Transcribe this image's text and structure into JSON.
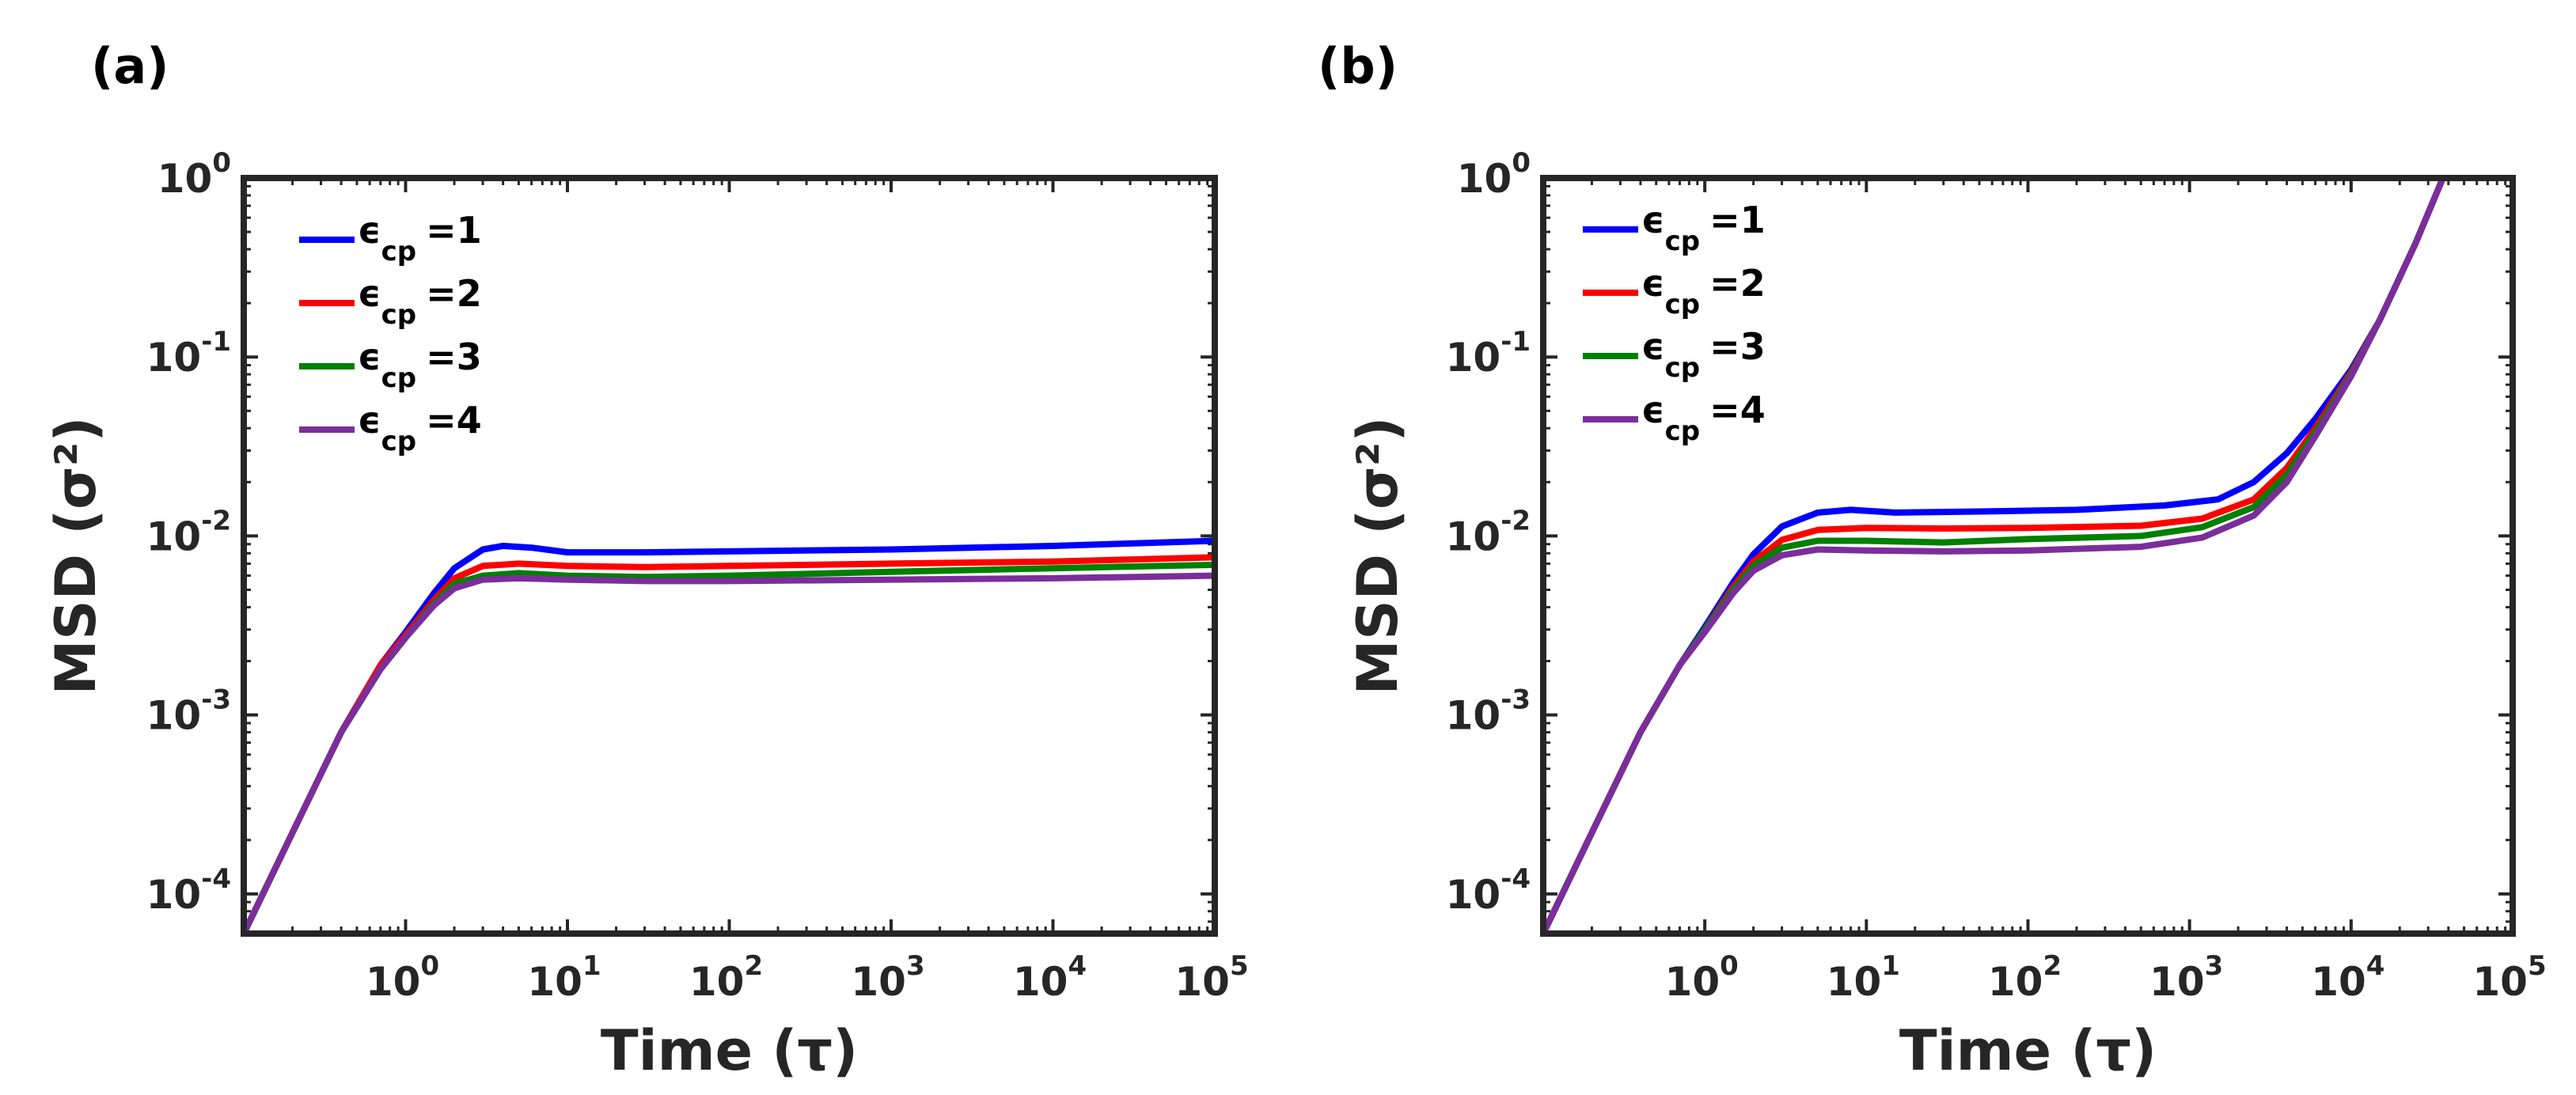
{
  "figure": {
    "panels": [
      {
        "id": "a",
        "label": "(a)"
      },
      {
        "id": "b",
        "label": "(b)"
      }
    ]
  },
  "chart_data": [
    {
      "type": "line",
      "panel_label": "(a)",
      "xscale": "log",
      "yscale": "log",
      "xlabel": "Time (τ)",
      "ylabel": "MSD (σ²)",
      "xlim": [
        0.1,
        100000
      ],
      "ylim": [
        6e-05,
        1
      ],
      "xticks": [
        {
          "value": 1,
          "base": "10",
          "exp": "0"
        },
        {
          "value": 10,
          "base": "10",
          "exp": "1"
        },
        {
          "value": 100,
          "base": "10",
          "exp": "2"
        },
        {
          "value": 1000,
          "base": "10",
          "exp": "3"
        },
        {
          "value": 10000,
          "base": "10",
          "exp": "4"
        },
        {
          "value": 100000,
          "base": "10",
          "exp": "5"
        }
      ],
      "yticks": [
        {
          "value": 0.0001,
          "base": "10",
          "exp": "-4"
        },
        {
          "value": 0.001,
          "base": "10",
          "exp": "-3"
        },
        {
          "value": 0.01,
          "base": "10",
          "exp": "-2"
        },
        {
          "value": 0.1,
          "base": "10",
          "exp": "-1"
        },
        {
          "value": 1,
          "base": "10",
          "exp": "0"
        }
      ],
      "legend_position": "top-left",
      "series": [
        {
          "name": "εcp =1",
          "symbol": "ϵ",
          "sub": "cp",
          "suffix": "=1",
          "color": "#0000ff",
          "points": [
            [
              0.1,
              6e-05
            ],
            [
              0.2,
              0.00022
            ],
            [
              0.4,
              0.0008
            ],
            [
              0.7,
              0.0019
            ],
            [
              1,
              0.0029
            ],
            [
              1.5,
              0.0048
            ],
            [
              2,
              0.0066
            ],
            [
              3,
              0.0084
            ],
            [
              4,
              0.0088
            ],
            [
              6,
              0.0086
            ],
            [
              10,
              0.0081
            ],
            [
              30,
              0.0081
            ],
            [
              100,
              0.0082
            ],
            [
              1000,
              0.0084
            ],
            [
              10000,
              0.0088
            ],
            [
              100000,
              0.0094
            ]
          ]
        },
        {
          "name": "εcp =2",
          "symbol": "ϵ",
          "sub": "cp",
          "suffix": "=2",
          "color": "#ff0000",
          "points": [
            [
              0.1,
              6e-05
            ],
            [
              0.2,
              0.00022
            ],
            [
              0.4,
              0.0008
            ],
            [
              0.7,
              0.0019
            ],
            [
              1,
              0.0028
            ],
            [
              1.5,
              0.0044
            ],
            [
              2,
              0.0058
            ],
            [
              3,
              0.0068
            ],
            [
              5,
              0.007
            ],
            [
              10,
              0.0068
            ],
            [
              30,
              0.0067
            ],
            [
              100,
              0.0068
            ],
            [
              1000,
              0.007
            ],
            [
              10000,
              0.0072
            ],
            [
              100000,
              0.0076
            ]
          ]
        },
        {
          "name": "εcp =3",
          "symbol": "ϵ",
          "sub": "cp",
          "suffix": "=3",
          "color": "#008000",
          "points": [
            [
              0.1,
              6e-05
            ],
            [
              0.2,
              0.00022
            ],
            [
              0.4,
              0.0008
            ],
            [
              0.7,
              0.0018
            ],
            [
              1,
              0.0027
            ],
            [
              1.5,
              0.0042
            ],
            [
              2,
              0.0054
            ],
            [
              3,
              0.006
            ],
            [
              5,
              0.0062
            ],
            [
              10,
              0.006
            ],
            [
              30,
              0.0059
            ],
            [
              100,
              0.006
            ],
            [
              1000,
              0.0063
            ],
            [
              10000,
              0.0066
            ],
            [
              100000,
              0.0069
            ]
          ]
        },
        {
          "name": "εcp =4",
          "symbol": "ϵ",
          "sub": "cp",
          "suffix": "=4",
          "color": "#7b2e9b",
          "points": [
            [
              0.1,
              6e-05
            ],
            [
              0.2,
              0.00022
            ],
            [
              0.4,
              0.0008
            ],
            [
              0.7,
              0.0018
            ],
            [
              1,
              0.0027
            ],
            [
              1.5,
              0.0041
            ],
            [
              2,
              0.0051
            ],
            [
              3,
              0.0057
            ],
            [
              5,
              0.0058
            ],
            [
              10,
              0.0057
            ],
            [
              30,
              0.0056
            ],
            [
              100,
              0.0056
            ],
            [
              1000,
              0.0057
            ],
            [
              10000,
              0.0058
            ],
            [
              100000,
              0.006
            ]
          ]
        }
      ]
    },
    {
      "type": "line",
      "panel_label": "(b)",
      "xscale": "log",
      "yscale": "log",
      "xlabel": "Time (τ)",
      "ylabel": "MSD (σ²)",
      "xlim": [
        0.1,
        100000
      ],
      "ylim": [
        6e-05,
        1
      ],
      "xticks": [
        {
          "value": 1,
          "base": "10",
          "exp": "0"
        },
        {
          "value": 10,
          "base": "10",
          "exp": "1"
        },
        {
          "value": 100,
          "base": "10",
          "exp": "2"
        },
        {
          "value": 1000,
          "base": "10",
          "exp": "3"
        },
        {
          "value": 10000,
          "base": "10",
          "exp": "4"
        },
        {
          "value": 100000,
          "base": "10",
          "exp": "5"
        }
      ],
      "yticks": [
        {
          "value": 0.0001,
          "base": "10",
          "exp": "-4"
        },
        {
          "value": 0.001,
          "base": "10",
          "exp": "-3"
        },
        {
          "value": 0.01,
          "base": "10",
          "exp": "-2"
        },
        {
          "value": 0.1,
          "base": "10",
          "exp": "-1"
        },
        {
          "value": 1,
          "base": "10",
          "exp": "0"
        }
      ],
      "legend_position": "top-left",
      "series": [
        {
          "name": "εcp =1",
          "symbol": "ϵ",
          "sub": "cp",
          "suffix": "=1",
          "color": "#0000ff",
          "points": [
            [
              0.1,
              6e-05
            ],
            [
              0.2,
              0.00022
            ],
            [
              0.4,
              0.0008
            ],
            [
              0.7,
              0.0019
            ],
            [
              1,
              0.0031
            ],
            [
              1.5,
              0.0055
            ],
            [
              2,
              0.0079
            ],
            [
              3,
              0.0113
            ],
            [
              5,
              0.0135
            ],
            [
              8,
              0.014
            ],
            [
              15,
              0.0135
            ],
            [
              50,
              0.0137
            ],
            [
              200,
              0.014
            ],
            [
              700,
              0.0148
            ],
            [
              1500,
              0.016
            ],
            [
              2500,
              0.02
            ],
            [
              4000,
              0.029
            ],
            [
              6000,
              0.045
            ],
            [
              10000,
              0.085
            ],
            [
              15000,
              0.16
            ],
            [
              25000,
              0.43
            ],
            [
              37000,
              1
            ]
          ]
        },
        {
          "name": "εcp =2",
          "symbol": "ϵ",
          "sub": "cp",
          "suffix": "=2",
          "color": "#ff0000",
          "points": [
            [
              0.1,
              6e-05
            ],
            [
              0.2,
              0.00022
            ],
            [
              0.4,
              0.0008
            ],
            [
              0.7,
              0.0019
            ],
            [
              1,
              0.003
            ],
            [
              1.5,
              0.0052
            ],
            [
              2,
              0.0072
            ],
            [
              3,
              0.0095
            ],
            [
              5,
              0.0108
            ],
            [
              10,
              0.0111
            ],
            [
              30,
              0.011
            ],
            [
              100,
              0.0111
            ],
            [
              500,
              0.0114
            ],
            [
              1200,
              0.0125
            ],
            [
              2500,
              0.016
            ],
            [
              4000,
              0.024
            ],
            [
              6000,
              0.04
            ],
            [
              10000,
              0.082
            ],
            [
              15000,
              0.16
            ],
            [
              25000,
              0.43
            ],
            [
              37000,
              1
            ]
          ]
        },
        {
          "name": "εcp =3",
          "symbol": "ϵ",
          "sub": "cp",
          "suffix": "=3",
          "color": "#008000",
          "points": [
            [
              0.1,
              6e-05
            ],
            [
              0.2,
              0.00022
            ],
            [
              0.4,
              0.0008
            ],
            [
              0.7,
              0.0019
            ],
            [
              1,
              0.003
            ],
            [
              1.5,
              0.005
            ],
            [
              2,
              0.0068
            ],
            [
              3,
              0.0086
            ],
            [
              5,
              0.0094
            ],
            [
              10,
              0.0094
            ],
            [
              30,
              0.0092
            ],
            [
              100,
              0.0096
            ],
            [
              500,
              0.01
            ],
            [
              1200,
              0.0112
            ],
            [
              2500,
              0.0145
            ],
            [
              4000,
              0.022
            ],
            [
              6000,
              0.038
            ],
            [
              10000,
              0.08
            ],
            [
              15000,
              0.16
            ],
            [
              25000,
              0.43
            ],
            [
              37000,
              1
            ]
          ]
        },
        {
          "name": "εcp =4",
          "symbol": "ϵ",
          "sub": "cp",
          "suffix": "=4",
          "color": "#7b2e9b",
          "points": [
            [
              0.1,
              6e-05
            ],
            [
              0.2,
              0.00022
            ],
            [
              0.4,
              0.0008
            ],
            [
              0.7,
              0.0019
            ],
            [
              1,
              0.0029
            ],
            [
              1.5,
              0.0048
            ],
            [
              2,
              0.0064
            ],
            [
              3,
              0.0078
            ],
            [
              5,
              0.0084
            ],
            [
              10,
              0.0083
            ],
            [
              30,
              0.0082
            ],
            [
              100,
              0.0083
            ],
            [
              500,
              0.0087
            ],
            [
              1200,
              0.0098
            ],
            [
              2500,
              0.013
            ],
            [
              4000,
              0.02
            ],
            [
              6000,
              0.036
            ],
            [
              10000,
              0.078
            ],
            [
              15000,
              0.16
            ],
            [
              25000,
              0.43
            ],
            [
              37000,
              1
            ]
          ]
        }
      ]
    }
  ]
}
